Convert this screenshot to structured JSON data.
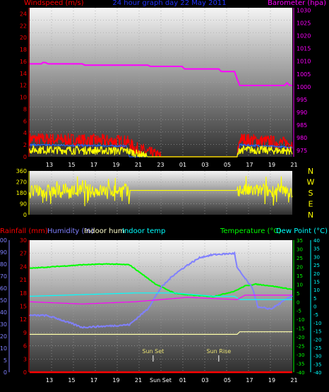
{
  "chart_data": [
    {
      "type": "line",
      "panel": "wind-barometer",
      "title": "24 hour graph day 22 May 2011",
      "left_label": "Windspeed (m/s)",
      "right_label": "Barometer (hpa)",
      "x_ticks": [
        "13",
        "15",
        "17",
        "19",
        "21",
        "23",
        "01",
        "03",
        "05",
        "17",
        "19",
        "21"
      ],
      "y_left_ticks": [
        "0",
        "2",
        "4",
        "6",
        "8",
        "10",
        "12",
        "14",
        "16",
        "18",
        "20",
        "22",
        "24"
      ],
      "y_left_range": [
        0,
        25
      ],
      "y_right_ticks": [
        "975",
        "980",
        "985",
        "990",
        "995",
        "1000",
        "1005",
        "1010",
        "1015",
        "1020",
        "1025",
        "1030"
      ],
      "y_right_range": [
        972.5,
        1031
      ],
      "grid": true,
      "series": [
        {
          "name": "barometer",
          "color": "#ff00ff",
          "axis": "right",
          "x": [
            0,
            0.045,
            0.05,
            0.06,
            0.07,
            0.2,
            0.21,
            0.45,
            0.46,
            0.58,
            0.59,
            0.72,
            0.73,
            0.78,
            0.79,
            0.8,
            0.97,
            0.98,
            0.99,
            1.0
          ],
          "y": [
            1009,
            1009,
            1009.5,
            1009.5,
            1009,
            1009,
            1008.5,
            1008.5,
            1008,
            1008,
            1007,
            1007,
            1006,
            1006,
            1003,
            1000.5,
            1000.5,
            1001.5,
            1000.5,
            1000.5
          ]
        },
        {
          "name": "wind-gust",
          "color": "#ff0000",
          "axis": "left",
          "x": [
            0,
            0.37,
            0.4,
            0.5,
            0.79,
            0.8,
            1.0
          ],
          "y": [
            3,
            2.6,
            1.5,
            0,
            0,
            3,
            2.2
          ]
        },
        {
          "name": "wind-avg",
          "color": "#ffff00",
          "axis": "left",
          "x": [
            0,
            0.37,
            0.45,
            0.79,
            0.8,
            1.0
          ],
          "y": [
            1.2,
            1.0,
            0,
            0,
            1.2,
            1.0
          ]
        },
        {
          "name": "wind-min",
          "color": "#2266ff",
          "axis": "left",
          "x": [
            0,
            0.37,
            0.38,
            0.79,
            0.8,
            1.0
          ],
          "y": [
            2,
            1.8,
            0,
            0,
            2,
            1.6
          ]
        }
      ]
    },
    {
      "type": "scatter",
      "panel": "wind-direction",
      "y_left_ticks": [
        "360",
        "270",
        "180",
        "90",
        "0"
      ],
      "y_range": [
        0,
        360
      ],
      "direction_labels": [
        "N",
        "W",
        "S",
        "E",
        "N"
      ],
      "series": [
        {
          "name": "direction",
          "color": "#ffff00",
          "x": [
            0,
            0.37,
            0.38,
            0.79,
            0.8,
            1.0
          ],
          "y": [
            190,
            200,
            150,
            210,
            200,
            190
          ]
        }
      ]
    },
    {
      "type": "line",
      "panel": "rain-humidity-temperature",
      "labels": {
        "rainfall": "Rainfall (mm)",
        "humidity": "Humidity (%)",
        "indoor_hum": "Indoor hum",
        "indoor_temp": "Indoor temp",
        "temperature": "Temperature (°C)",
        "dew_point": "Dew Point (°C)"
      },
      "y_rain_ticks": [
        "0",
        "3",
        "6",
        "9",
        "12",
        "15",
        "18",
        "21",
        "24",
        "27",
        "30"
      ],
      "y_hum_ticks": [
        "0",
        "5",
        "10",
        "20",
        "30",
        "40",
        "50",
        "60",
        "70",
        "80",
        "90",
        "100"
      ],
      "y_temp_ticks": [
        "35",
        "30",
        "25",
        "20",
        "15",
        "10",
        "5",
        "0",
        "-5",
        "-10",
        "-15",
        "-20",
        "-25",
        "-30",
        "-35",
        "-40"
      ],
      "y_dew_ticks": [
        "40",
        "35",
        "30",
        "25",
        "20",
        "15",
        "10",
        "5",
        "0",
        "-5",
        "-10",
        "-15",
        "-20",
        "-25",
        "-30",
        "-35",
        "-40"
      ],
      "x_ticks": [
        "13",
        "15",
        "17",
        "19",
        "21",
        "Sun Set",
        "01",
        "03",
        "05",
        "17",
        "19",
        "21"
      ],
      "annotations": [
        "Sun Set",
        "Sun Rise"
      ],
      "grid": true,
      "series": [
        {
          "name": "temperature",
          "color": "#00ff00",
          "axis": "temperature",
          "x": [
            0,
            0.1,
            0.2,
            0.3,
            0.38,
            0.48,
            0.55,
            0.6,
            0.7,
            0.78,
            0.82,
            0.86,
            0.92,
            1.0
          ],
          "y": [
            19,
            20,
            21,
            21.5,
            21,
            10,
            5,
            4,
            3,
            6,
            9,
            10,
            9,
            7
          ]
        },
        {
          "name": "humidity",
          "color": "#8080ff",
          "axis": "humidity",
          "x": [
            0,
            0.06,
            0.1,
            0.2,
            0.3,
            0.38,
            0.45,
            0.5,
            0.55,
            0.6,
            0.65,
            0.7,
            0.78,
            0.79,
            0.85,
            0.87,
            0.92,
            1.0
          ],
          "y": [
            43,
            43,
            41,
            34,
            35,
            36,
            48,
            64,
            74,
            81,
            87,
            89,
            90,
            79,
            63,
            49,
            48,
            58
          ]
        },
        {
          "name": "dew-point",
          "color": "#00ffff",
          "axis": "dew",
          "x": [
            0,
            0.2,
            0.4,
            0.55,
            0.7,
            0.78,
            0.8,
            1.0
          ],
          "y": [
            6,
            7,
            8,
            8,
            6,
            6,
            4,
            4
          ]
        },
        {
          "name": "indoor-temp",
          "color": "#ff00ff",
          "axis": "rain",
          "x": [
            0,
            0.2,
            0.4,
            0.5,
            0.6,
            0.79,
            0.82,
            1.0
          ],
          "y": [
            16,
            15.5,
            16,
            16.5,
            17,
            16.5,
            17.5,
            17.5
          ]
        },
        {
          "name": "indoor-hum",
          "color": "#ffffaa",
          "axis": "rain",
          "x": [
            0,
            0.79,
            0.8,
            1.0
          ],
          "y": [
            8.6,
            8.6,
            9.2,
            9.2
          ]
        },
        {
          "name": "rainfall",
          "color": "#ff0000",
          "axis": "rain",
          "x": [
            0,
            1.0
          ],
          "y": [
            0,
            0
          ]
        }
      ]
    }
  ],
  "colors": {
    "background": "#000000",
    "title": "#2233ff",
    "windspeed_label": "#ff0000",
    "barometer_label": "#ff00ff",
    "temperature_label": "#00ff00",
    "dew_label": "#00ffff",
    "humidity_label": "#8080ff",
    "sun_label": "#e8e070"
  }
}
